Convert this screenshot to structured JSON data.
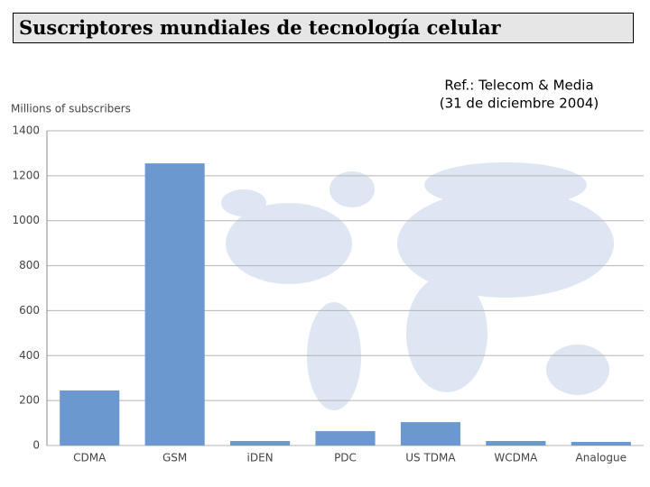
{
  "chart_data": {
    "type": "bar",
    "title": "Suscriptores mundiales de tecnología celular",
    "annotations": [
      "Ref.: Telecom & Media",
      "(31 de diciembre 2004)"
    ],
    "y_label": "Millions of subscribers",
    "categories": [
      "CDMA",
      "GSM",
      "iDEN",
      "PDC",
      "US TDMA",
      "WCDMA",
      "Analogue"
    ],
    "values": [
      245,
      1255,
      20,
      64,
      104,
      20,
      16
    ],
    "color": "#6b98cf",
    "ylim": [
      0,
      1400
    ],
    "yticks": [
      0,
      200,
      400,
      600,
      800,
      1000,
      1200,
      1400
    ],
    "grid": true
  }
}
